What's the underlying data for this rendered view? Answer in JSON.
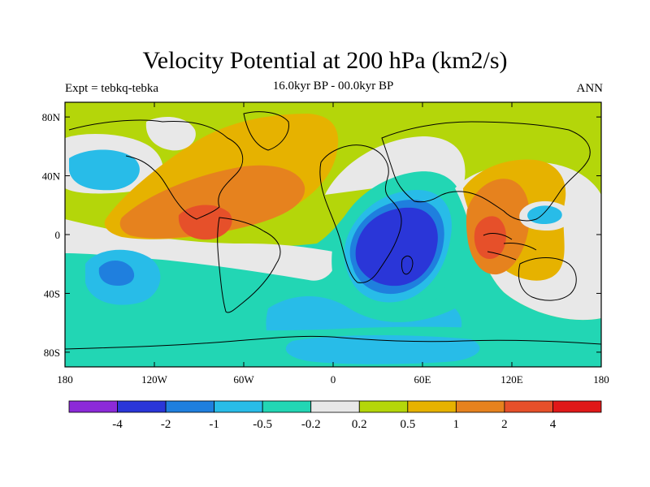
{
  "title": "Velocity Potential at 200 hPa (km2/s)",
  "subtitle_left": "Expt = tebkq-tebka",
  "subtitle_center": "16.0kyr BP - 00.0kyr BP",
  "subtitle_right": "ANN",
  "map": {
    "lon_range": [
      -180,
      180
    ],
    "lat_range": [
      -90,
      90
    ],
    "lat_ticks": [
      {
        "value": 80,
        "label": "80N"
      },
      {
        "value": 40,
        "label": "40N"
      },
      {
        "value": 0,
        "label": "0"
      },
      {
        "value": -40,
        "label": "40S"
      },
      {
        "value": -80,
        "label": "80S"
      }
    ],
    "lon_ticks": [
      {
        "value": -180,
        "label": "180"
      },
      {
        "value": -120,
        "label": "120W"
      },
      {
        "value": -60,
        "label": "60W"
      },
      {
        "value": 0,
        "label": "0"
      },
      {
        "value": 60,
        "label": "60E"
      },
      {
        "value": 120,
        "label": "120E"
      },
      {
        "value": 180,
        "label": "180"
      }
    ]
  },
  "colorbar": {
    "colors": [
      "#8c2ad8",
      "#2a36d8",
      "#1f7fde",
      "#28bce8",
      "#22d6b4",
      "#e8e8e8",
      "#b4d60a",
      "#e6b200",
      "#e6821e",
      "#e6502a",
      "#e01818"
    ],
    "labels": [
      "-4",
      "-2",
      "-1",
      "-0.5",
      "-0.2",
      "0.2",
      "0.5",
      "1",
      "2",
      "4"
    ]
  }
}
